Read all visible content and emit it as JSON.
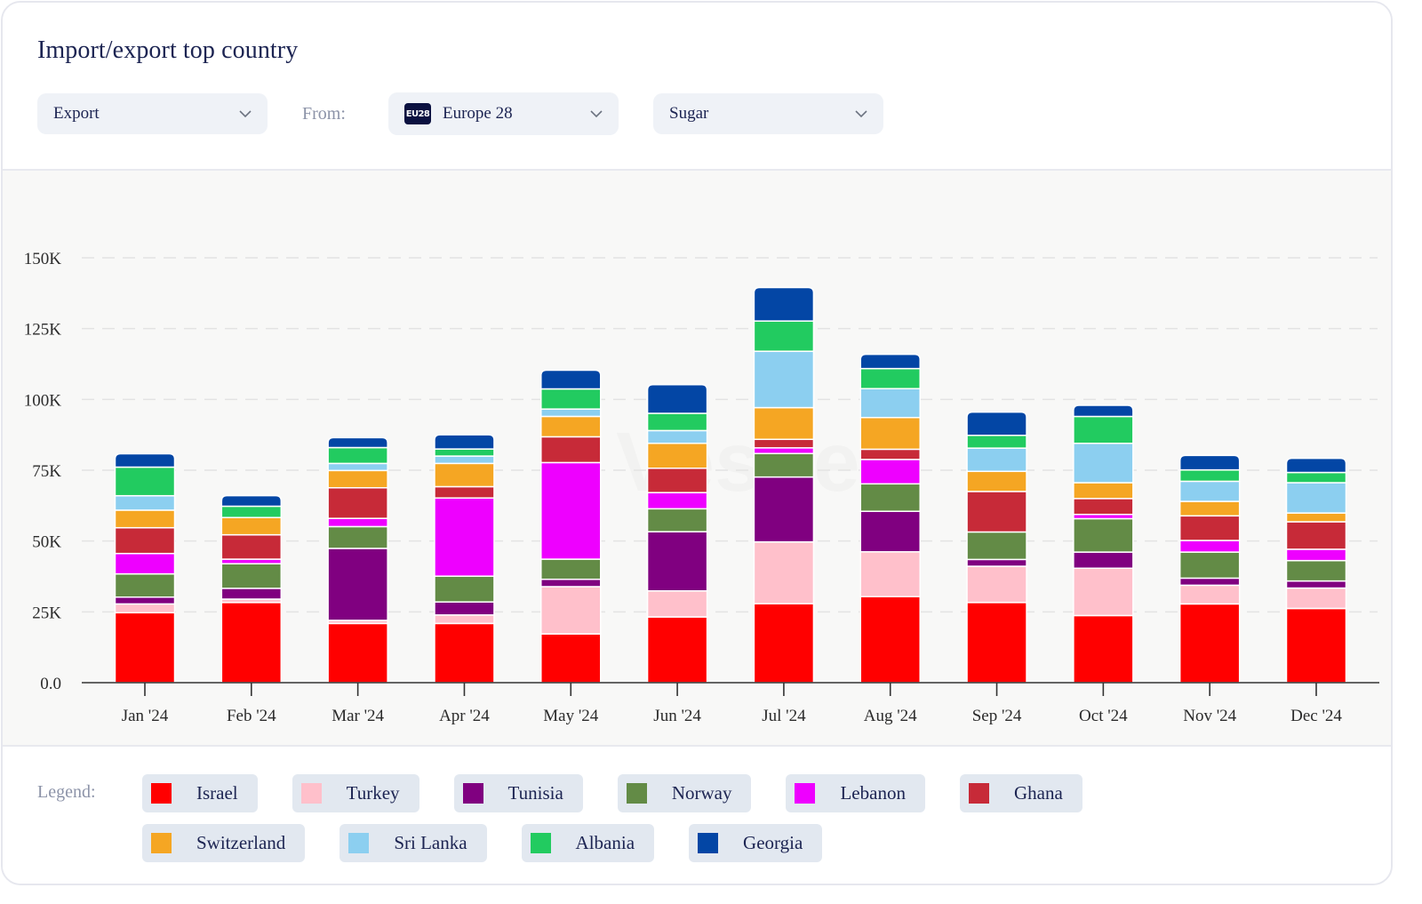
{
  "header": {
    "title": "Import/export top country",
    "flow_dropdown": {
      "value": "Export"
    },
    "from_label": "From:",
    "region_dropdown": {
      "badge": "EU28",
      "value": "Europe 28"
    },
    "product_dropdown": {
      "value": "Sugar"
    }
  },
  "watermark": "Vespe",
  "legend": {
    "label": "Legend:"
  },
  "chart_data": {
    "type": "bar",
    "stacked": true,
    "title": "Import/export top country",
    "xlabel": "",
    "ylabel": "",
    "ylim": [
      0,
      150000
    ],
    "yticks": [
      0,
      25000,
      50000,
      75000,
      100000,
      125000,
      150000
    ],
    "ytick_labels": [
      "0.0",
      "25K",
      "50K",
      "75K",
      "100K",
      "125K",
      "150K"
    ],
    "grid": "horizontal-dashed",
    "legend_position": "bottom",
    "categories": [
      "Jan '24",
      "Feb '24",
      "Mar '24",
      "Apr '24",
      "May '24",
      "Jun '24",
      "Jul '24",
      "Aug '24",
      "Sep '24",
      "Oct '24",
      "Nov '24",
      "Dec '24"
    ],
    "series": [
      {
        "name": "Israel",
        "color": "#ff0000",
        "values": [
          24700,
          28300,
          20900,
          20900,
          17200,
          23200,
          27900,
          30400,
          28300,
          23700,
          27800,
          26200
        ]
      },
      {
        "name": "Turkey",
        "color": "#ffc0cb",
        "values": [
          3100,
          1200,
          1100,
          3000,
          16700,
          9200,
          21800,
          15800,
          12800,
          16700,
          6600,
          7200
        ]
      },
      {
        "name": "Tunisia",
        "color": "#800080",
        "values": [
          2400,
          3800,
          25400,
          4600,
          2600,
          20900,
          22900,
          14300,
          2400,
          5700,
          2500,
          2500
        ]
      },
      {
        "name": "Norway",
        "color": "#638b46",
        "values": [
          8200,
          8700,
          7700,
          9100,
          7100,
          8100,
          8300,
          9700,
          9700,
          11800,
          9200,
          7200
        ]
      },
      {
        "name": "Lebanon",
        "color": "#ee00ff",
        "values": [
          7200,
          1600,
          2900,
          27600,
          34100,
          5700,
          2000,
          8600,
          0,
          1500,
          4100,
          4000
        ]
      },
      {
        "name": "Ghana",
        "color": "#c72a38",
        "values": [
          9100,
          8600,
          10800,
          4000,
          9100,
          8600,
          3000,
          3600,
          14300,
          5600,
          8700,
          9700
        ]
      },
      {
        "name": "Switzerland",
        "color": "#f5a623",
        "values": [
          6200,
          6100,
          6100,
          8200,
          7200,
          8800,
          11200,
          11200,
          7100,
          5600,
          5100,
          3100
        ]
      },
      {
        "name": "Sri Lanka",
        "color": "#8ccff0",
        "values": [
          5100,
          0,
          2500,
          2600,
          2600,
          4500,
          19900,
          10200,
          8200,
          13900,
          7100,
          10700
        ]
      },
      {
        "name": "Albania",
        "color": "#22cb60",
        "values": [
          10100,
          4000,
          5600,
          2500,
          7100,
          6100,
          10700,
          7100,
          4500,
          9500,
          4000,
          3600
        ]
      },
      {
        "name": "Georgia",
        "color": "#0346a5",
        "values": [
          4700,
          3700,
          3500,
          5000,
          6600,
          10100,
          11800,
          5000,
          8200,
          3900,
          5100,
          5000
        ]
      }
    ]
  }
}
